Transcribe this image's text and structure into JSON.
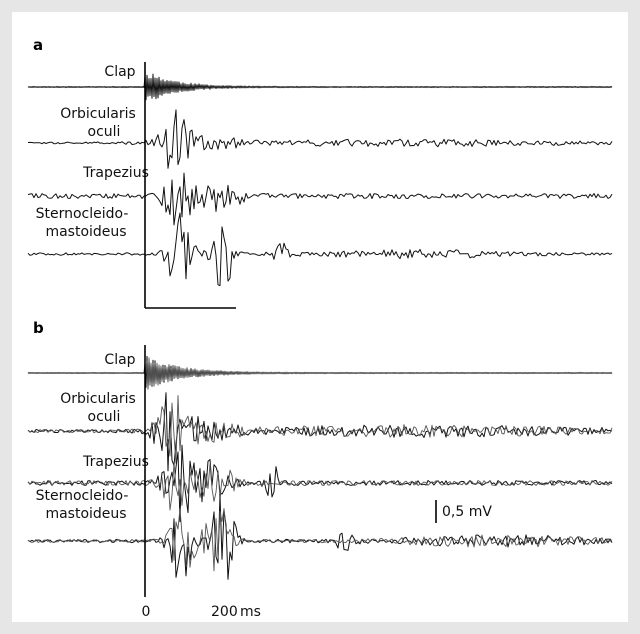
{
  "panels": {
    "a": {
      "letter": "a",
      "labels": {
        "clap": "Clap",
        "orbicularis_1": "Orbicularis",
        "orbicularis_2": "oculi",
        "trapezius": "Trapezius",
        "scm_1": "Sternocleido-",
        "scm_2": "mastoideus"
      }
    },
    "b": {
      "letter": "b",
      "labels": {
        "clap": "Clap",
        "orbicularis_1": "Orbicularis",
        "orbicularis_2": "oculi",
        "trapezius": "Trapezius",
        "scm_1": "Sternocleido-",
        "scm_2": "mastoideus"
      }
    }
  },
  "scale": {
    "voltage": "0,5 mV",
    "time_start": "0",
    "time_end": "200",
    "time_unit": "ms"
  },
  "colors": {
    "background": "#e6e6e6",
    "panel": "#ffffff",
    "trace": "#111111"
  }
}
